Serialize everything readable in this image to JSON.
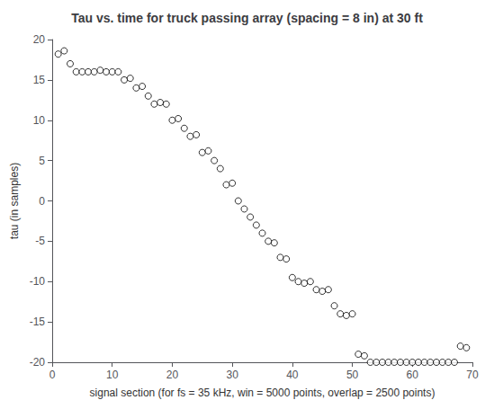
{
  "chart_data": {
    "type": "scatter",
    "title": "Tau vs. time for truck passing array (spacing = 8 in) at 30 ft",
    "xlabel": "signal section (for fs = 35 kHz, win = 5000 points, overlap = 2500 points)",
    "ylabel": "tau (in samples)",
    "xlim": [
      0,
      70
    ],
    "ylim": [
      -20,
      20
    ],
    "xticks": [
      0,
      10,
      20,
      30,
      40,
      50,
      60,
      70
    ],
    "yticks": [
      -20,
      -15,
      -10,
      -5,
      0,
      5,
      10,
      15,
      20
    ],
    "x": [
      1,
      2,
      3,
      4,
      5,
      6,
      7,
      8,
      9,
      10,
      11,
      12,
      13,
      14,
      15,
      16,
      17,
      18,
      19,
      20,
      21,
      22,
      23,
      24,
      25,
      26,
      27,
      28,
      29,
      30,
      31,
      32,
      33,
      34,
      35,
      36,
      37,
      38,
      39,
      40,
      41,
      42,
      43,
      44,
      45,
      46,
      47,
      48,
      49,
      50,
      51,
      52,
      53,
      54,
      55,
      56,
      57,
      58,
      59,
      60,
      61,
      62,
      63,
      64,
      65,
      66,
      67,
      68,
      69
    ],
    "values": [
      18.2,
      18.6,
      17.0,
      16.0,
      16.0,
      16.0,
      16.0,
      16.2,
      16.0,
      16.0,
      16.0,
      15.0,
      15.2,
      14.0,
      14.2,
      13.0,
      12.0,
      12.2,
      12.0,
      10.0,
      10.2,
      9.0,
      8.0,
      8.2,
      6.0,
      6.2,
      5.0,
      4.0,
      2.0,
      2.2,
      0.0,
      -1.0,
      -2.0,
      -3.0,
      -4.0,
      -5.0,
      -5.2,
      -7.0,
      -7.2,
      -9.5,
      -10.0,
      -10.2,
      -10.0,
      -11.0,
      -11.2,
      -11.0,
      -13.0,
      -14.0,
      -14.2,
      -14.0,
      -19.0,
      -19.2,
      -20.0,
      -20.0,
      -20.0,
      -20.0,
      -20.0,
      -20.0,
      -20.0,
      -20.0,
      -20.0,
      -20.0,
      -20.0,
      -20.0,
      -20.0,
      -20.0,
      -20.0,
      -18.0,
      -18.2
    ],
    "marker": "circle",
    "color": "#000000",
    "grid": false
  }
}
